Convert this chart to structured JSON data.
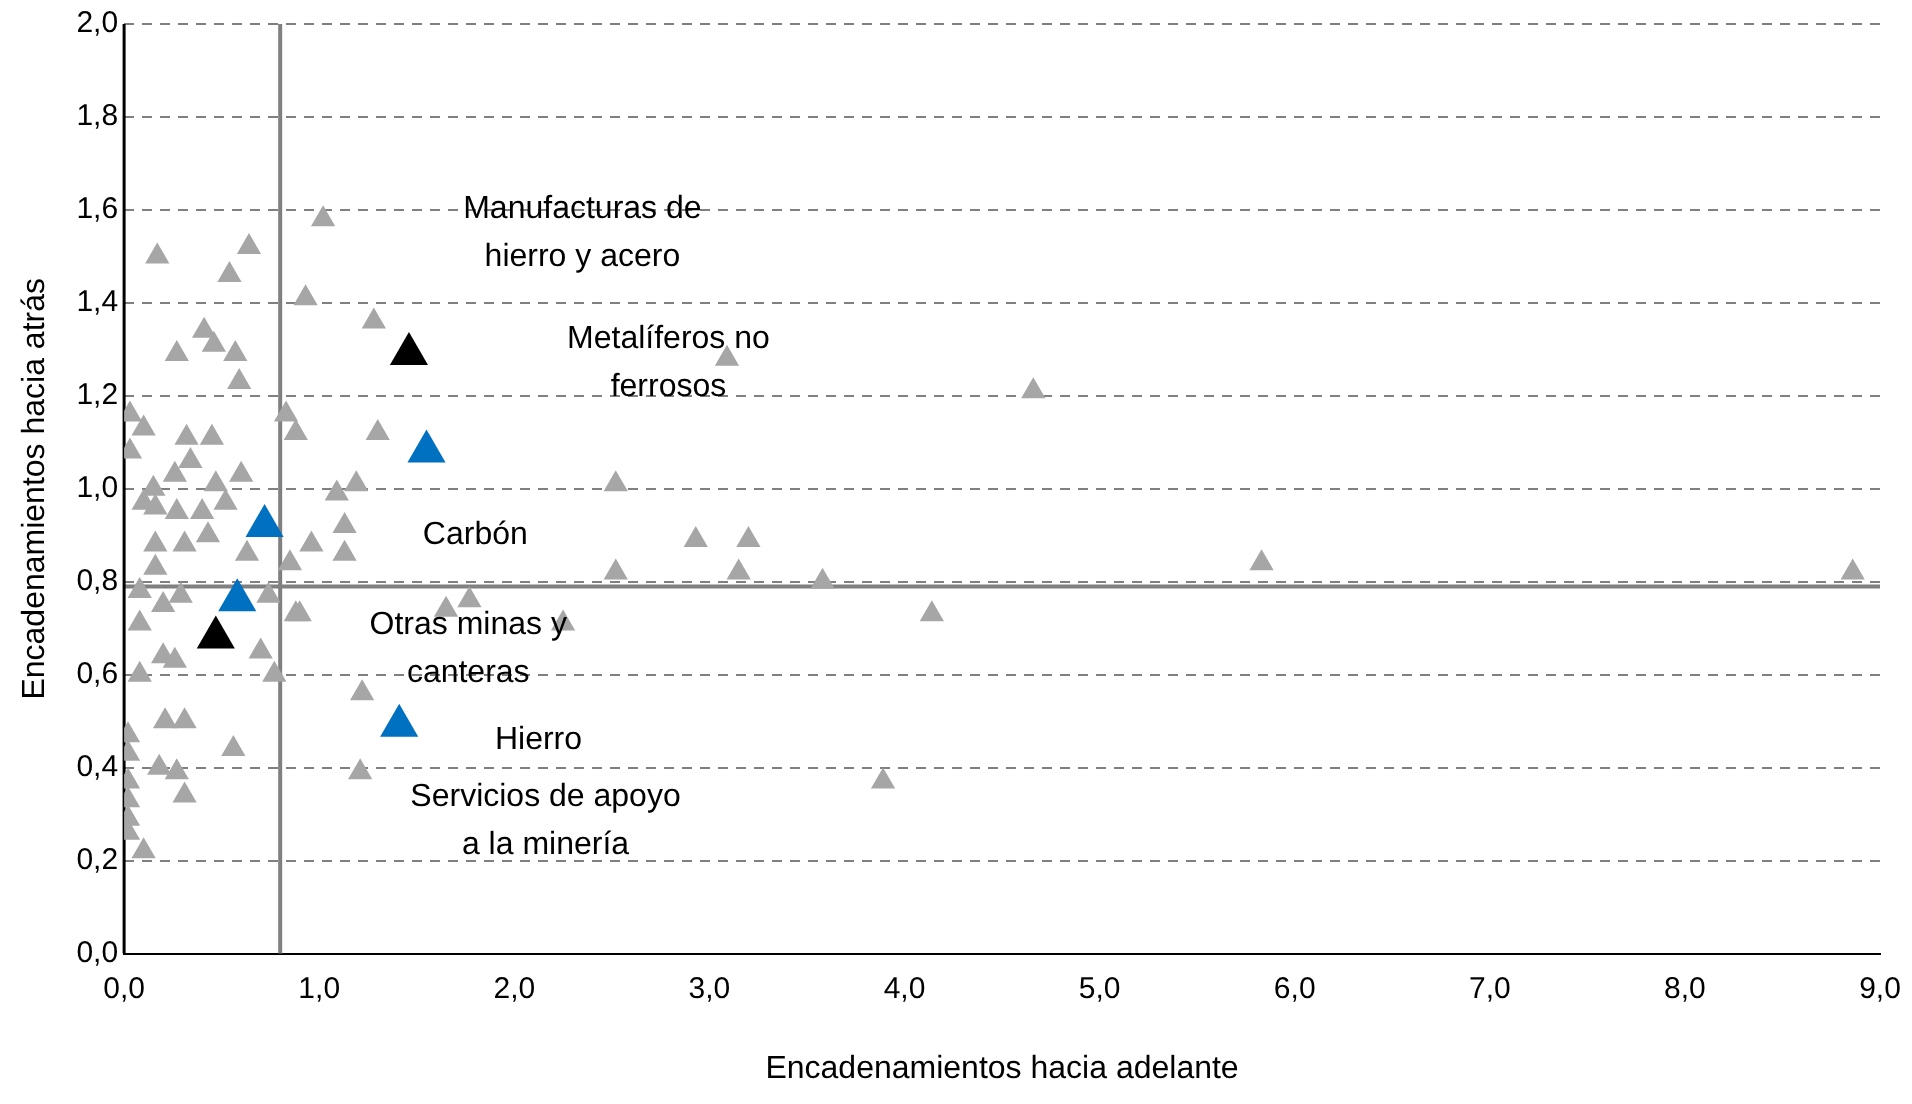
{
  "chart_data": {
    "type": "scatter",
    "xlabel": "Encadenamientos hacia adelante",
    "ylabel": "Encadenamientos hacia atrás",
    "marker": "triangle",
    "grid": "y",
    "legend": false,
    "xlim": [
      0,
      9
    ],
    "xticks": [
      {
        "value": 0,
        "label": "0,0"
      },
      {
        "value": 1,
        "label": "1,0"
      },
      {
        "value": 2,
        "label": "2,0"
      },
      {
        "value": 3,
        "label": "3,0"
      },
      {
        "value": 4,
        "label": "4,0"
      },
      {
        "value": 5,
        "label": "5,0"
      },
      {
        "value": 6,
        "label": "6,0"
      },
      {
        "value": 7,
        "label": "7,0"
      },
      {
        "value": 8,
        "label": "8,0"
      },
      {
        "value": 9,
        "label": "9,0"
      }
    ],
    "ylim": [
      0,
      2
    ],
    "yticks": [
      {
        "value": 0,
        "label": "0,0"
      },
      {
        "value": 0.2,
        "label": "0,2"
      },
      {
        "value": 0.4,
        "label": "0,4"
      },
      {
        "value": 0.6,
        "label": "0,6"
      },
      {
        "value": 0.8,
        "label": "0,8"
      },
      {
        "value": 1,
        "label": "1,0"
      },
      {
        "value": 1.2,
        "label": "1,2"
      },
      {
        "value": 1.4,
        "label": "1,4"
      },
      {
        "value": 1.6,
        "label": "1,6"
      },
      {
        "value": 1.8,
        "label": "1,8"
      },
      {
        "value": 2,
        "label": "2,0"
      }
    ],
    "series": [
      {
        "color": "#a6a6a6",
        "x": [
          1.02,
          0.17,
          0.64,
          0.54,
          0.93,
          1.28,
          0.41,
          0.27,
          0.46,
          0.57,
          0.59,
          0.83,
          0.88,
          1.3,
          0.03,
          0.1,
          0.03,
          0.32,
          0.45,
          0.26,
          0.34,
          0.47,
          0.6,
          1.09,
          1.19,
          0.15,
          0.1,
          0.52,
          1.13,
          0.16,
          0.27,
          0.4,
          0.16,
          0.31,
          0.43,
          0.96,
          1.13,
          0.16,
          0.63,
          0.85,
          0.9,
          0.08,
          0.29,
          0.2,
          0.74,
          0.88,
          0.08,
          0.7,
          0.77,
          0.2,
          0.26,
          0.08,
          1.22,
          0.21,
          0.31,
          0.02,
          0.56,
          0.02,
          0.18,
          0.27,
          1.21,
          0.02,
          0.31,
          0.02,
          0.02,
          0.02,
          0.1,
          3.09,
          2.52,
          2.93,
          3.2,
          2.52,
          3.15,
          3.58,
          4.66,
          5.83,
          8.86,
          4.14,
          3.89,
          1.65,
          1.77,
          2.25
        ],
        "values": [
          1.58,
          1.5,
          1.52,
          1.46,
          1.41,
          1.36,
          1.34,
          1.29,
          1.31,
          1.29,
          1.23,
          1.16,
          1.12,
          1.12,
          1.16,
          1.13,
          1.08,
          1.11,
          1.11,
          1.03,
          1.06,
          1.01,
          1.03,
          0.99,
          1.01,
          1.0,
          0.97,
          0.97,
          0.92,
          0.96,
          0.95,
          0.95,
          0.88,
          0.88,
          0.9,
          0.88,
          0.86,
          0.83,
          0.86,
          0.84,
          0.73,
          0.78,
          0.77,
          0.75,
          0.77,
          0.73,
          0.71,
          0.65,
          0.6,
          0.64,
          0.63,
          0.6,
          0.56,
          0.5,
          0.5,
          0.47,
          0.44,
          0.43,
          0.4,
          0.39,
          0.39,
          0.37,
          0.34,
          0.33,
          0.29,
          0.26,
          0.22,
          1.28,
          1.01,
          0.89,
          0.89,
          0.82,
          0.82,
          0.8,
          1.21,
          0.84,
          0.82,
          0.73,
          0.37,
          0.74,
          0.76,
          0.71
        ]
      },
      {
        "color": "#000000",
        "x": [
          1.46,
          0.47
        ],
        "values": [
          1.29,
          0.68
        ]
      },
      {
        "color": "#0070c0",
        "x": [
          1.55,
          0.72,
          0.58,
          1.41
        ],
        "values": [
          1.08,
          0.92,
          0.76,
          0.49
        ]
      }
    ],
    "ref_lines": [
      {
        "axis": "x",
        "value": 0.8,
        "color": "#808080"
      },
      {
        "axis": "y",
        "value": 0.79,
        "color": "#808080"
      }
    ],
    "annotations": [
      "Manufacturas de\nhierro y acero",
      "Metalíferos no\nferrosos",
      "Carbón",
      "Otras minas y\ncanteras",
      "Hierro",
      "Servicios de apoyo\na la minería"
    ]
  }
}
